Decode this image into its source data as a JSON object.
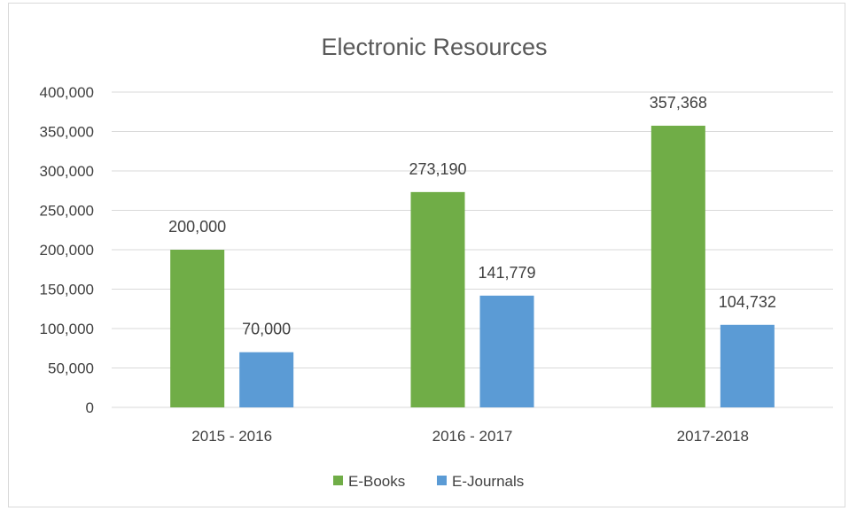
{
  "chart_data": {
    "type": "bar",
    "title": "Electronic Resources",
    "categories": [
      "2015 - 2016",
      "2016 - 2017",
      "2017-2018"
    ],
    "series": [
      {
        "name": "E-Books",
        "values": [
          200000,
          273190,
          357368
        ],
        "labels": [
          "200,000",
          "273,190",
          "357,368"
        ],
        "color": "#70ad47"
      },
      {
        "name": "E-Journals",
        "values": [
          70000,
          141779,
          104732
        ],
        "labels": [
          "70,000",
          "141,779",
          "104,732"
        ],
        "color": "#5b9bd5"
      }
    ],
    "ylim": [
      0,
      400000
    ],
    "yticks": [
      0,
      50000,
      100000,
      150000,
      200000,
      250000,
      300000,
      350000,
      400000
    ],
    "ytick_labels": [
      "0",
      "50,000",
      "100,000",
      "150,000",
      "200,000",
      "250,000",
      "300,000",
      "350,000",
      "400,000"
    ],
    "grid": true,
    "legend_position": "bottom",
    "gridline_color": "#d9d9d9"
  }
}
